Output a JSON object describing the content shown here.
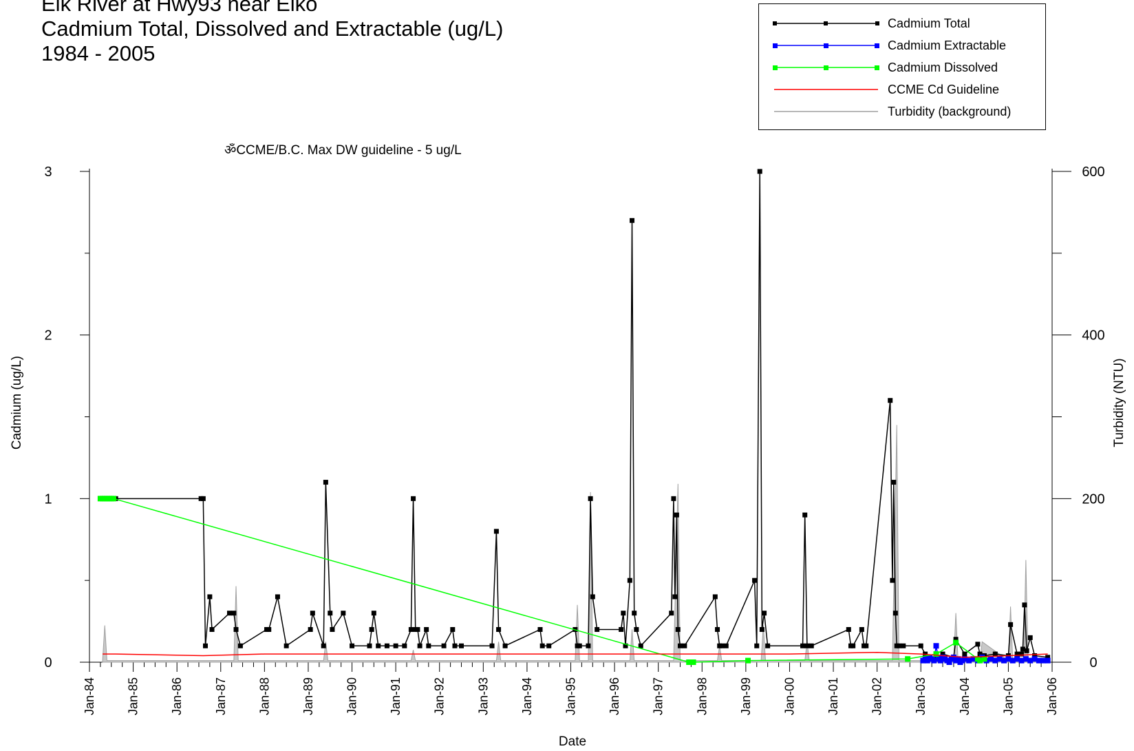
{
  "title": {
    "line1": "Elk River at Hwy93 near Elko",
    "line2": "Cadmium Total, Dissolved and Extractable (ug/L)",
    "line3": "1984 - 2005"
  },
  "annotation": "ॐCCME/B.C. Max DW guideline - 5 ug/L",
  "legend": [
    {
      "label": "Cadmium Total",
      "color": "#000000",
      "marker": true
    },
    {
      "label": "Cadmium Extractable",
      "color": "#0000ff",
      "marker": true
    },
    {
      "label": "Cadmium Dissolved",
      "color": "#00ff00",
      "marker": true
    },
    {
      "label": "CCME Cd Guideline",
      "color": "#ff0000",
      "marker": false
    },
    {
      "label": "Turbidity (background)",
      "color": "#a0a0a0",
      "marker": false
    }
  ],
  "chart_data": {
    "type": "line",
    "xlabel": "Date",
    "ylabel": "Cadmium (ug/L)",
    "y2label": "Turbidity (NTU)",
    "xlim": [
      1984.0,
      2006.0
    ],
    "ylim": [
      0,
      3
    ],
    "y2lim": [
      0,
      600
    ],
    "x_ticks": [
      "Jan-84",
      "Jan-85",
      "Jan-86",
      "Jan-87",
      "Jan-88",
      "Jan-89",
      "Jan-90",
      "Jan-91",
      "Jan-92",
      "Jan-93",
      "Jan-94",
      "Jan-95",
      "Jan-96",
      "Jan-97",
      "Jan-98",
      "Jan-99",
      "Jan-00",
      "Jan-01",
      "Jan-02",
      "Jan-03",
      "Jan-04",
      "Jan-05",
      "Jan-06"
    ],
    "y_ticks": [
      "0",
      "1",
      "2",
      "3"
    ],
    "y2_ticks": [
      "0",
      "200",
      "400",
      "600"
    ],
    "series": [
      {
        "name": "Cadmium Total",
        "color": "#000000",
        "x": [
          1984.33,
          1984.6,
          1986.55,
          1986.6,
          1986.65,
          1986.75,
          1986.8,
          1987.2,
          1987.3,
          1987.35,
          1987.45,
          1988.05,
          1988.1,
          1988.3,
          1988.5,
          1989.05,
          1989.1,
          1989.35,
          1989.4,
          1989.5,
          1989.55,
          1989.8,
          1990.0,
          1990.4,
          1990.45,
          1990.5,
          1990.6,
          1990.8,
          1991.0,
          1991.2,
          1991.35,
          1991.4,
          1991.45,
          1991.5,
          1991.55,
          1991.7,
          1991.75,
          1992.1,
          1992.3,
          1992.35,
          1992.5,
          1993.2,
          1993.3,
          1993.35,
          1993.5,
          1994.3,
          1994.35,
          1994.5,
          1995.1,
          1995.15,
          1995.2,
          1995.4,
          1995.45,
          1995.5,
          1995.6,
          1996.15,
          1996.2,
          1996.25,
          1996.35,
          1996.4,
          1996.45,
          1996.5,
          1996.6,
          1997.3,
          1997.35,
          1997.38,
          1997.42,
          1997.45,
          1997.5,
          1997.6,
          1998.3,
          1998.35,
          1998.4,
          1998.45,
          1998.55,
          1999.2,
          1999.25,
          1999.32,
          1999.37,
          1999.42,
          1999.5,
          2000.3,
          2000.35,
          2000.4,
          2000.5,
          2001.35,
          2001.4,
          2001.45,
          2001.65,
          2001.7,
          2001.75,
          2002.3,
          2002.35,
          2002.38,
          2002.42,
          2002.45,
          2002.5,
          2002.6,
          2003.0,
          2003.1,
          2003.3,
          2003.5,
          2003.75,
          2003.8,
          2004.0,
          2004.3,
          2004.35,
          2004.45,
          2004.7,
          2005.0,
          2005.05,
          2005.2,
          2005.3,
          2005.33,
          2005.37,
          2005.42,
          2005.5,
          2005.6,
          2005.9
        ],
        "values": [
          1.0,
          1.0,
          1.0,
          1.0,
          0.1,
          0.4,
          0.2,
          0.3,
          0.3,
          0.2,
          0.1,
          0.2,
          0.2,
          0.4,
          0.1,
          0.2,
          0.3,
          0.1,
          1.1,
          0.3,
          0.2,
          0.3,
          0.1,
          0.1,
          0.2,
          0.3,
          0.1,
          0.1,
          0.1,
          0.1,
          0.2,
          1.0,
          0.2,
          0.2,
          0.1,
          0.2,
          0.1,
          0.1,
          0.2,
          0.1,
          0.1,
          0.1,
          0.8,
          0.2,
          0.1,
          0.2,
          0.1,
          0.1,
          0.2,
          0.1,
          0.1,
          0.1,
          1.0,
          0.4,
          0.2,
          0.2,
          0.3,
          0.1,
          0.5,
          2.7,
          0.3,
          0.2,
          0.1,
          0.3,
          1.0,
          0.4,
          0.9,
          0.2,
          0.1,
          0.1,
          0.4,
          0.2,
          0.1,
          0.1,
          0.1,
          0.5,
          0.1,
          3.0,
          0.2,
          0.3,
          0.1,
          0.1,
          0.9,
          0.1,
          0.1,
          0.2,
          0.1,
          0.1,
          0.2,
          0.1,
          0.1,
          1.6,
          0.5,
          1.1,
          0.3,
          0.1,
          0.1,
          0.1,
          0.1,
          0.05,
          0.02,
          0.05,
          0.03,
          0.14,
          0.05,
          0.11,
          0.05,
          0.04,
          0.05,
          0.04,
          0.23,
          0.05,
          0.05,
          0.08,
          0.35,
          0.07,
          0.15,
          0.04,
          0.03
        ]
      },
      {
        "name": "Cadmium Extractable",
        "color": "#0000ff",
        "x": [
          2003.05,
          2003.1,
          2003.15,
          2003.2,
          2003.25,
          2003.3,
          2003.35,
          2003.4,
          2003.45,
          2003.5,
          2003.55,
          2003.6,
          2003.65,
          2003.7,
          2003.75,
          2003.8,
          2003.85,
          2003.9,
          2003.95,
          2004.0,
          2004.1,
          2004.2,
          2004.3,
          2004.4,
          2004.5,
          2004.6,
          2004.7,
          2004.8,
          2004.9,
          2005.0,
          2005.1,
          2005.2,
          2005.3,
          2005.4,
          2005.5,
          2005.6,
          2005.7,
          2005.8,
          2005.9
        ],
        "values": [
          0.01,
          0.02,
          0.01,
          0.03,
          0.02,
          0.01,
          0.1,
          0.02,
          0.01,
          0.03,
          0.02,
          0.01,
          0.0,
          0.02,
          0.03,
          0.01,
          0.02,
          0.0,
          0.01,
          0.02,
          0.01,
          0.02,
          0.01,
          0.03,
          0.01,
          0.02,
          0.01,
          0.02,
          0.01,
          0.02,
          0.01,
          0.02,
          0.01,
          0.02,
          0.01,
          0.02,
          0.01,
          0.01,
          0.01
        ]
      },
      {
        "name": "Cadmium Dissolved",
        "color": "#00ff00",
        "x": [
          1984.25,
          1984.3,
          1984.35,
          1984.4,
          1984.45,
          1984.5,
          1984.55,
          1997.7,
          1997.8,
          1999.05,
          2002.7,
          2003.35,
          2003.8,
          2004.3,
          2004.35,
          2004.45
        ],
        "values": [
          1.0,
          1.0,
          1.0,
          1.0,
          1.0,
          1.0,
          1.0,
          0.0,
          0.0,
          0.01,
          0.02,
          0.05,
          0.12,
          0.02,
          0.01,
          0.02
        ]
      },
      {
        "name": "CCME Cd Guideline",
        "color": "#ff0000",
        "x": [
          1984.3,
          1984.6,
          1986.6,
          1988.0,
          1990.0,
          1992.0,
          1994.0,
          1996.0,
          1998.0,
          2000.0,
          2002.0,
          2003.0,
          2004.0,
          2005.0,
          2005.9
        ],
        "values": [
          0.05,
          0.05,
          0.04,
          0.05,
          0.05,
          0.05,
          0.05,
          0.05,
          0.05,
          0.05,
          0.06,
          0.05,
          0.03,
          0.04,
          0.05
        ]
      },
      {
        "name": "Turbidity (background)",
        "color": "#a0a0a0",
        "axis": "right",
        "x": [
          1984.3,
          1984.35,
          1984.4,
          1986.6,
          1987.3,
          1987.35,
          1987.4,
          1989.35,
          1989.4,
          1989.45,
          1991.35,
          1991.4,
          1991.45,
          1993.3,
          1993.35,
          1993.4,
          1995.1,
          1995.15,
          1995.2,
          1995.4,
          1995.45,
          1995.5,
          1996.35,
          1996.4,
          1996.45,
          1997.35,
          1997.45,
          1997.5,
          1998.35,
          1998.4,
          1998.45,
          1999.35,
          1999.4,
          1999.45,
          2000.35,
          2000.4,
          2000.45,
          2002.35,
          2002.45,
          2002.5,
          2003.75,
          2003.8,
          2003.85,
          2004.35,
          2004.4,
          2005.0,
          2005.05,
          2005.1,
          2005.35,
          2005.4,
          2005.45,
          2005.9
        ],
        "values": [
          2,
          45,
          2,
          2,
          2,
          93,
          2,
          2,
          25,
          2,
          2,
          15,
          2,
          2,
          25,
          2,
          2,
          70,
          2,
          2,
          208,
          2,
          2,
          40,
          2,
          2,
          218,
          2,
          2,
          20,
          2,
          2,
          45,
          2,
          2,
          25,
          2,
          2,
          290,
          2,
          2,
          60,
          2,
          2,
          25,
          2,
          68,
          2,
          2,
          125,
          2,
          2
        ]
      }
    ]
  }
}
